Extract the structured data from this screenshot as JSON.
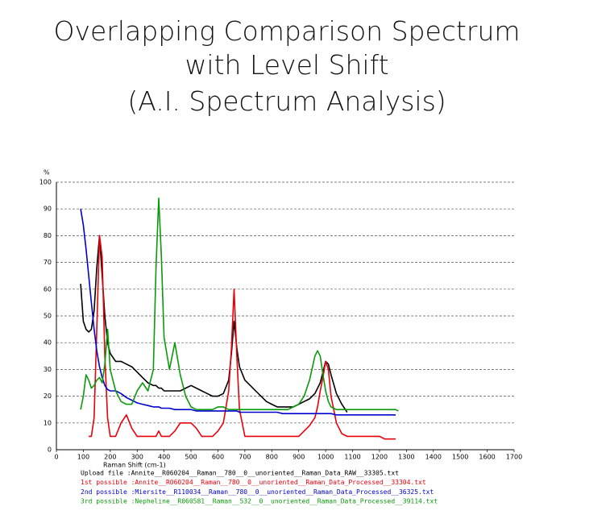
{
  "chart_data": {
    "type": "line",
    "title": [
      "Overlapping Comparison  Spectrum",
      "with Level Shift",
      "(A.I. Spectrum Analysis)"
    ],
    "ylabel": "%",
    "xlabel": "Raman Shift (cm-1)",
    "grid": true,
    "xlim": [
      0,
      1700
    ],
    "xticks": [
      0,
      100,
      200,
      300,
      400,
      500,
      600,
      700,
      800,
      900,
      1000,
      1100,
      1200,
      1300,
      1400,
      1500,
      1600,
      1700
    ],
    "ylim": [
      0,
      100
    ],
    "yticks": [
      0,
      10,
      20,
      30,
      40,
      50,
      60,
      70,
      80,
      90,
      100
    ],
    "x": [
      80,
      90,
      100,
      110,
      120,
      130,
      140,
      150,
      160,
      170,
      180,
      190,
      200,
      220,
      240,
      260,
      280,
      300,
      320,
      340,
      360,
      370,
      380,
      390,
      400,
      420,
      440,
      460,
      480,
      500,
      520,
      540,
      560,
      580,
      600,
      620,
      640,
      650,
      660,
      670,
      680,
      700,
      720,
      740,
      760,
      780,
      800,
      820,
      840,
      860,
      880,
      900,
      920,
      940,
      960,
      970,
      980,
      990,
      1000,
      1010,
      1020,
      1040,
      1060,
      1080,
      1100,
      1120,
      1140,
      1160,
      1180,
      1200,
      1220,
      1240,
      1260,
      1270
    ],
    "series": [
      {
        "name": "Upload file  :Annite__R060204__Raman__780__0__unoriented__Raman_Data_RAW__33305.txt",
        "color": "#000000",
        "values": [
          null,
          62,
          48,
          45,
          44,
          45,
          52,
          68,
          80,
          65,
          50,
          40,
          36,
          33,
          33,
          32,
          31,
          29,
          27,
          25,
          24,
          24,
          23,
          23,
          22,
          22,
          22,
          22,
          23,
          24,
          23,
          22,
          21,
          20,
          20,
          21,
          26,
          36,
          48,
          38,
          31,
          26,
          24,
          22,
          20,
          18,
          17,
          16,
          16,
          16,
          16,
          17,
          18,
          19,
          21,
          23,
          25,
          29,
          33,
          32,
          28,
          21,
          17,
          14,
          null,
          null,
          null,
          null,
          null,
          null,
          null,
          null,
          null,
          null
        ]
      },
      {
        "name": "1st possible :Annite__R060204__Raman__780__0__unoriented__Raman_Data_Processed__33304.txt",
        "color": "#e8000b",
        "values": [
          null,
          null,
          null,
          null,
          5,
          5,
          12,
          45,
          80,
          72,
          35,
          12,
          5,
          5,
          10,
          13,
          8,
          5,
          5,
          5,
          5,
          5,
          7,
          5,
          5,
          5,
          7,
          10,
          10,
          10,
          8,
          5,
          5,
          5,
          7,
          10,
          22,
          38,
          60,
          35,
          15,
          5,
          5,
          5,
          5,
          5,
          5,
          5,
          5,
          5,
          5,
          5,
          7,
          9,
          12,
          16,
          22,
          27,
          33,
          30,
          20,
          10,
          6,
          5,
          5,
          5,
          5,
          5,
          5,
          5,
          4,
          4,
          4,
          null
        ]
      },
      {
        "name": "2nd possible :Miersite__R110034__Raman__780__0__unoriented__Raman_Data_Processed__36325.txt",
        "color": "#0000d0",
        "values": [
          null,
          90,
          84,
          75,
          65,
          55,
          45,
          37,
          31,
          27,
          24,
          22.5,
          22,
          22,
          21,
          19.5,
          18.5,
          17.5,
          17,
          16.5,
          16,
          16,
          16,
          15.5,
          15.5,
          15.5,
          15,
          15,
          15,
          15,
          14.5,
          14.5,
          14.5,
          14.5,
          14.5,
          14.5,
          14.5,
          14.5,
          14.5,
          14.5,
          14,
          14,
          14,
          14,
          14,
          14,
          14,
          14,
          13.5,
          13.5,
          13.5,
          13.5,
          13.5,
          13.5,
          13.5,
          13.5,
          13.5,
          13.5,
          13.5,
          13.5,
          13.5,
          13,
          13,
          13,
          13,
          13,
          13,
          13,
          13,
          13,
          13,
          13,
          13,
          null
        ]
      },
      {
        "name": "3rd possible :Nepheline__R060581__Raman__532__0__unoriented__Raman_Data_Processed__39114.txt",
        "color": "#0a9a0a",
        "values": [
          null,
          15,
          20,
          28,
          26,
          23,
          24,
          26,
          27,
          25,
          32,
          45,
          30,
          22,
          18,
          17,
          17,
          22,
          25,
          22,
          30,
          68,
          94,
          72,
          42,
          30,
          40,
          28,
          20,
          16,
          15,
          15,
          15,
          15,
          16,
          16,
          15,
          15,
          15,
          15,
          15,
          15,
          15,
          15,
          15,
          15,
          15,
          15,
          15,
          15,
          16,
          17,
          20,
          26,
          35,
          37,
          35,
          28,
          22,
          18,
          16,
          15,
          15,
          15,
          15,
          15,
          15,
          15,
          15,
          15,
          15,
          15,
          15,
          14.5
        ]
      }
    ]
  }
}
